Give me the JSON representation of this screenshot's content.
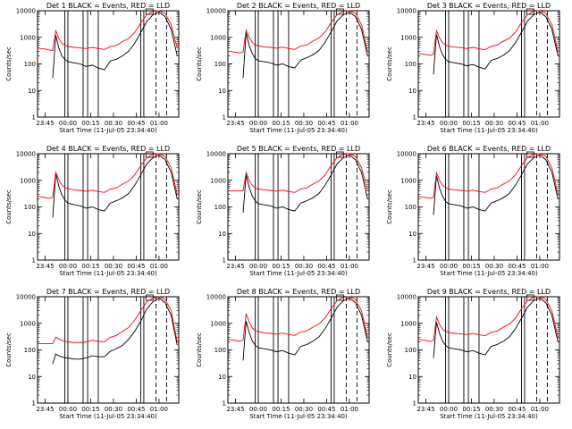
{
  "shared": {
    "ylabel": "Counts/sec",
    "xlabel": "Start Time (11-Jul-05 23:34:40)",
    "yticks": [
      "1",
      "10",
      "100",
      "1000",
      "10000"
    ],
    "xticks": [
      "23:45",
      "00:00",
      "00:15",
      "00:30",
      "00:45",
      "01:00"
    ],
    "colors": {
      "events": "#000000",
      "lld": "#ff0000",
      "axes": "#000000"
    }
  },
  "chart_data": [
    {
      "type": "line",
      "title": "Det 1 BLACK = Events, RED = LLD",
      "ylim": [
        1,
        10000
      ],
      "yscale": "log",
      "x": [
        "23:40",
        "23:42",
        "23:44",
        "23:46",
        "23:48",
        "23:50",
        "23:52",
        "23:54",
        "23:56",
        "23:58",
        "00:00",
        "00:04",
        "00:08",
        "00:12",
        "00:16",
        "00:20",
        "00:24",
        "00:28",
        "00:32",
        "00:36",
        "00:40",
        "00:44",
        "00:48",
        "00:52",
        "00:56",
        "01:00",
        "01:04",
        "01:08",
        "01:12"
      ],
      "series": [
        {
          "name": "Events",
          "values": [
            null,
            null,
            null,
            null,
            null,
            30,
            1200,
            400,
            200,
            150,
            120,
            110,
            100,
            80,
            90,
            70,
            60,
            130,
            150,
            200,
            300,
            600,
            1500,
            4000,
            7000,
            9000,
            6000,
            2000,
            200
          ]
        },
        {
          "name": "LLD",
          "values": [
            400,
            380,
            370,
            350,
            330,
            320,
            1800,
            900,
            600,
            500,
            450,
            420,
            400,
            380,
            420,
            380,
            350,
            450,
            500,
            700,
            900,
            1500,
            3500,
            7000,
            9500,
            10000,
            8000,
            3000,
            400
          ]
        }
      ]
    },
    {
      "type": "line",
      "title": "Det 2 BLACK = Events, RED = LLD",
      "ylim": [
        1,
        10000
      ],
      "yscale": "log",
      "x": [
        "23:40",
        "23:42",
        "23:44",
        "23:46",
        "23:48",
        "23:50",
        "23:52",
        "23:54",
        "23:56",
        "23:58",
        "00:00",
        "00:04",
        "00:08",
        "00:12",
        "00:16",
        "00:20",
        "00:24",
        "00:28",
        "00:32",
        "00:36",
        "00:40",
        "00:44",
        "00:48",
        "00:52",
        "00:56",
        "01:00",
        "01:04",
        "01:08",
        "01:12"
      ],
      "series": [
        {
          "name": "Events",
          "values": [
            null,
            null,
            null,
            null,
            null,
            30,
            1500,
            500,
            250,
            160,
            130,
            120,
            110,
            90,
            100,
            80,
            70,
            140,
            170,
            220,
            320,
            650,
            1600,
            4200,
            7000,
            9000,
            6000,
            2000,
            200
          ]
        },
        {
          "name": "LLD",
          "values": [
            300,
            290,
            280,
            270,
            260,
            280,
            1900,
            1000,
            650,
            520,
            470,
            440,
            420,
            390,
            430,
            380,
            350,
            470,
            520,
            720,
            950,
            1600,
            3600,
            7200,
            9500,
            10000,
            8000,
            3000,
            300
          ]
        }
      ]
    },
    {
      "type": "line",
      "title": "Det 3 BLACK = Events, RED = LLD",
      "ylim": [
        1,
        10000
      ],
      "yscale": "log",
      "x": [
        "23:40",
        "23:42",
        "23:44",
        "23:46",
        "23:48",
        "23:50",
        "23:52",
        "23:54",
        "23:56",
        "23:58",
        "00:00",
        "00:04",
        "00:08",
        "00:12",
        "00:16",
        "00:20",
        "00:24",
        "00:28",
        "00:32",
        "00:36",
        "00:40",
        "00:44",
        "00:48",
        "00:52",
        "00:56",
        "01:00",
        "01:04",
        "01:08",
        "01:12"
      ],
      "series": [
        {
          "name": "Events",
          "values": [
            null,
            null,
            null,
            null,
            null,
            40,
            1300,
            450,
            220,
            150,
            120,
            110,
            100,
            85,
            95,
            75,
            65,
            135,
            160,
            210,
            310,
            620,
            1550,
            4100,
            7000,
            9000,
            6000,
            2000,
            200
          ]
        },
        {
          "name": "LLD",
          "values": [
            250,
            240,
            230,
            220,
            210,
            230,
            1800,
            950,
            620,
            510,
            460,
            430,
            410,
            380,
            420,
            370,
            340,
            460,
            510,
            710,
            930,
            1550,
            3550,
            7100,
            9500,
            10000,
            8000,
            3000,
            300
          ]
        }
      ]
    },
    {
      "type": "line",
      "title": "Det 4 BLACK = Events, RED = LLD",
      "ylim": [
        1,
        10000
      ],
      "yscale": "log",
      "x": [
        "23:40",
        "23:42",
        "23:44",
        "23:46",
        "23:48",
        "23:50",
        "23:52",
        "23:54",
        "23:56",
        "23:58",
        "00:00",
        "00:04",
        "00:08",
        "00:12",
        "00:16",
        "00:20",
        "00:24",
        "00:28",
        "00:32",
        "00:36",
        "00:40",
        "00:44",
        "00:48",
        "00:52",
        "00:56",
        "01:00",
        "01:04",
        "01:08",
        "01:12"
      ],
      "series": [
        {
          "name": "Events",
          "values": [
            null,
            null,
            null,
            null,
            null,
            40,
            1800,
            600,
            280,
            180,
            140,
            120,
            110,
            90,
            100,
            80,
            70,
            140,
            170,
            220,
            320,
            650,
            1600,
            4200,
            7000,
            9000,
            6000,
            2000,
            200
          ]
        },
        {
          "name": "LLD",
          "values": [
            250,
            240,
            230,
            220,
            210,
            230,
            2000,
            1050,
            680,
            530,
            480,
            440,
            420,
            390,
            430,
            380,
            350,
            470,
            520,
            720,
            950,
            1600,
            3600,
            7200,
            9500,
            10000,
            8000,
            3000,
            300
          ]
        }
      ]
    },
    {
      "type": "line",
      "title": "Det 5 BLACK = Events, RED = LLD",
      "ylim": [
        1,
        10000
      ],
      "yscale": "log",
      "x": [
        "23:40",
        "23:42",
        "23:44",
        "23:46",
        "23:48",
        "23:50",
        "23:52",
        "23:54",
        "23:56",
        "23:58",
        "00:00",
        "00:04",
        "00:08",
        "00:12",
        "00:16",
        "00:20",
        "00:24",
        "00:28",
        "00:32",
        "00:36",
        "00:40",
        "00:44",
        "00:48",
        "00:52",
        "00:56",
        "01:00",
        "01:04",
        "01:08",
        "01:12"
      ],
      "series": [
        {
          "name": "Events",
          "values": [
            null,
            null,
            null,
            null,
            null,
            60,
            1600,
            550,
            260,
            170,
            130,
            120,
            110,
            90,
            100,
            80,
            70,
            140,
            170,
            220,
            320,
            650,
            1600,
            4200,
            7000,
            9000,
            6000,
            2000,
            200
          ]
        },
        {
          "name": "LLD",
          "values": [
            400,
            400,
            400,
            400,
            400,
            400,
            2000,
            1000,
            650,
            520,
            470,
            440,
            420,
            390,
            430,
            380,
            350,
            470,
            520,
            720,
            950,
            1600,
            3600,
            7200,
            9500,
            10000,
            8000,
            3000,
            400
          ]
        }
      ]
    },
    {
      "type": "line",
      "title": "Det 6 BLACK = Events, RED = LLD",
      "ylim": [
        1,
        10000
      ],
      "yscale": "log",
      "x": [
        "23:40",
        "23:42",
        "23:44",
        "23:46",
        "23:48",
        "23:50",
        "23:52",
        "23:54",
        "23:56",
        "23:58",
        "00:00",
        "00:04",
        "00:08",
        "00:12",
        "00:16",
        "00:20",
        "00:24",
        "00:28",
        "00:32",
        "00:36",
        "00:40",
        "00:44",
        "00:48",
        "00:52",
        "00:56",
        "01:00",
        "01:04",
        "01:08",
        "01:12"
      ],
      "series": [
        {
          "name": "Events",
          "values": [
            null,
            null,
            null,
            null,
            null,
            50,
            1500,
            500,
            250,
            160,
            130,
            120,
            110,
            90,
            100,
            80,
            70,
            140,
            170,
            220,
            320,
            650,
            1600,
            4200,
            7000,
            9000,
            6000,
            2000,
            200
          ]
        },
        {
          "name": "LLD",
          "values": [
            250,
            240,
            230,
            220,
            210,
            230,
            1900,
            1000,
            650,
            520,
            470,
            440,
            420,
            390,
            430,
            380,
            350,
            470,
            520,
            720,
            950,
            1600,
            3600,
            7200,
            9500,
            10000,
            8000,
            3000,
            300
          ]
        }
      ]
    },
    {
      "type": "line",
      "title": "Det 7 BLACK = Events, RED = LLD",
      "ylim": [
        1,
        10000
      ],
      "yscale": "log",
      "x": [
        "23:40",
        "23:42",
        "23:44",
        "23:46",
        "23:48",
        "23:50",
        "23:52",
        "23:54",
        "23:56",
        "23:58",
        "00:00",
        "00:04",
        "00:08",
        "00:12",
        "00:16",
        "00:20",
        "00:24",
        "00:28",
        "00:32",
        "00:36",
        "00:40",
        "00:44",
        "00:48",
        "00:52",
        "00:56",
        "01:00",
        "01:04",
        "01:08",
        "01:12"
      ],
      "series": [
        {
          "name": "Events",
          "values": [
            null,
            null,
            null,
            null,
            null,
            30,
            70,
            60,
            55,
            50,
            50,
            45,
            45,
            50,
            60,
            55,
            55,
            90,
            110,
            150,
            250,
            500,
            1200,
            3500,
            6500,
            9000,
            6000,
            2000,
            150
          ]
        },
        {
          "name": "LLD",
          "values": [
            170,
            170,
            170,
            170,
            170,
            170,
            300,
            260,
            230,
            210,
            200,
            190,
            190,
            200,
            230,
            210,
            200,
            300,
            350,
            500,
            700,
            1300,
            3000,
            6500,
            9000,
            10000,
            8000,
            3000,
            200
          ]
        }
      ]
    },
    {
      "type": "line",
      "title": "Det 8 BLACK = Events, RED = LLD",
      "ylim": [
        1,
        10000
      ],
      "yscale": "log",
      "x": [
        "23:40",
        "23:42",
        "23:44",
        "23:46",
        "23:48",
        "23:50",
        "23:52",
        "23:54",
        "23:56",
        "23:58",
        "00:00",
        "00:04",
        "00:08",
        "00:12",
        "00:16",
        "00:20",
        "00:24",
        "00:28",
        "00:32",
        "00:36",
        "00:40",
        "00:44",
        "00:48",
        "00:52",
        "00:56",
        "01:00",
        "01:04",
        "01:08",
        "01:12"
      ],
      "series": [
        {
          "name": "Events",
          "values": [
            null,
            null,
            null,
            null,
            null,
            40,
            1200,
            450,
            220,
            150,
            120,
            110,
            100,
            85,
            95,
            75,
            65,
            135,
            160,
            210,
            310,
            620,
            1550,
            4100,
            7000,
            9000,
            6000,
            2000,
            200
          ]
        },
        {
          "name": "LLD",
          "values": [
            250,
            240,
            230,
            220,
            210,
            230,
            2300,
            1100,
            680,
            530,
            480,
            440,
            420,
            390,
            430,
            380,
            350,
            470,
            520,
            720,
            950,
            1600,
            3600,
            7200,
            9500,
            10000,
            8000,
            3000,
            300
          ]
        }
      ]
    },
    {
      "type": "line",
      "title": "Det 9 BLACK = Events, RED = LLD",
      "ylim": [
        1,
        10000
      ],
      "yscale": "log",
      "x": [
        "23:40",
        "23:42",
        "23:44",
        "23:46",
        "23:48",
        "23:50",
        "23:52",
        "23:54",
        "23:56",
        "23:58",
        "00:00",
        "00:04",
        "00:08",
        "00:12",
        "00:16",
        "00:20",
        "00:24",
        "00:28",
        "00:32",
        "00:36",
        "00:40",
        "00:44",
        "00:48",
        "00:52",
        "00:56",
        "01:00",
        "01:04",
        "01:08",
        "01:12"
      ],
      "series": [
        {
          "name": "Events",
          "values": [
            null,
            null,
            null,
            null,
            null,
            50,
            1100,
            420,
            210,
            150,
            120,
            110,
            100,
            85,
            95,
            75,
            65,
            135,
            160,
            210,
            310,
            620,
            1550,
            4100,
            7000,
            9000,
            6000,
            2000,
            200
          ]
        },
        {
          "name": "LLD",
          "values": [
            250,
            240,
            230,
            220,
            210,
            230,
            1700,
            900,
            600,
            500,
            450,
            420,
            400,
            380,
            420,
            370,
            340,
            460,
            510,
            710,
            930,
            1550,
            3550,
            7100,
            9500,
            10000,
            8000,
            3000,
            300
          ]
        }
      ]
    }
  ]
}
